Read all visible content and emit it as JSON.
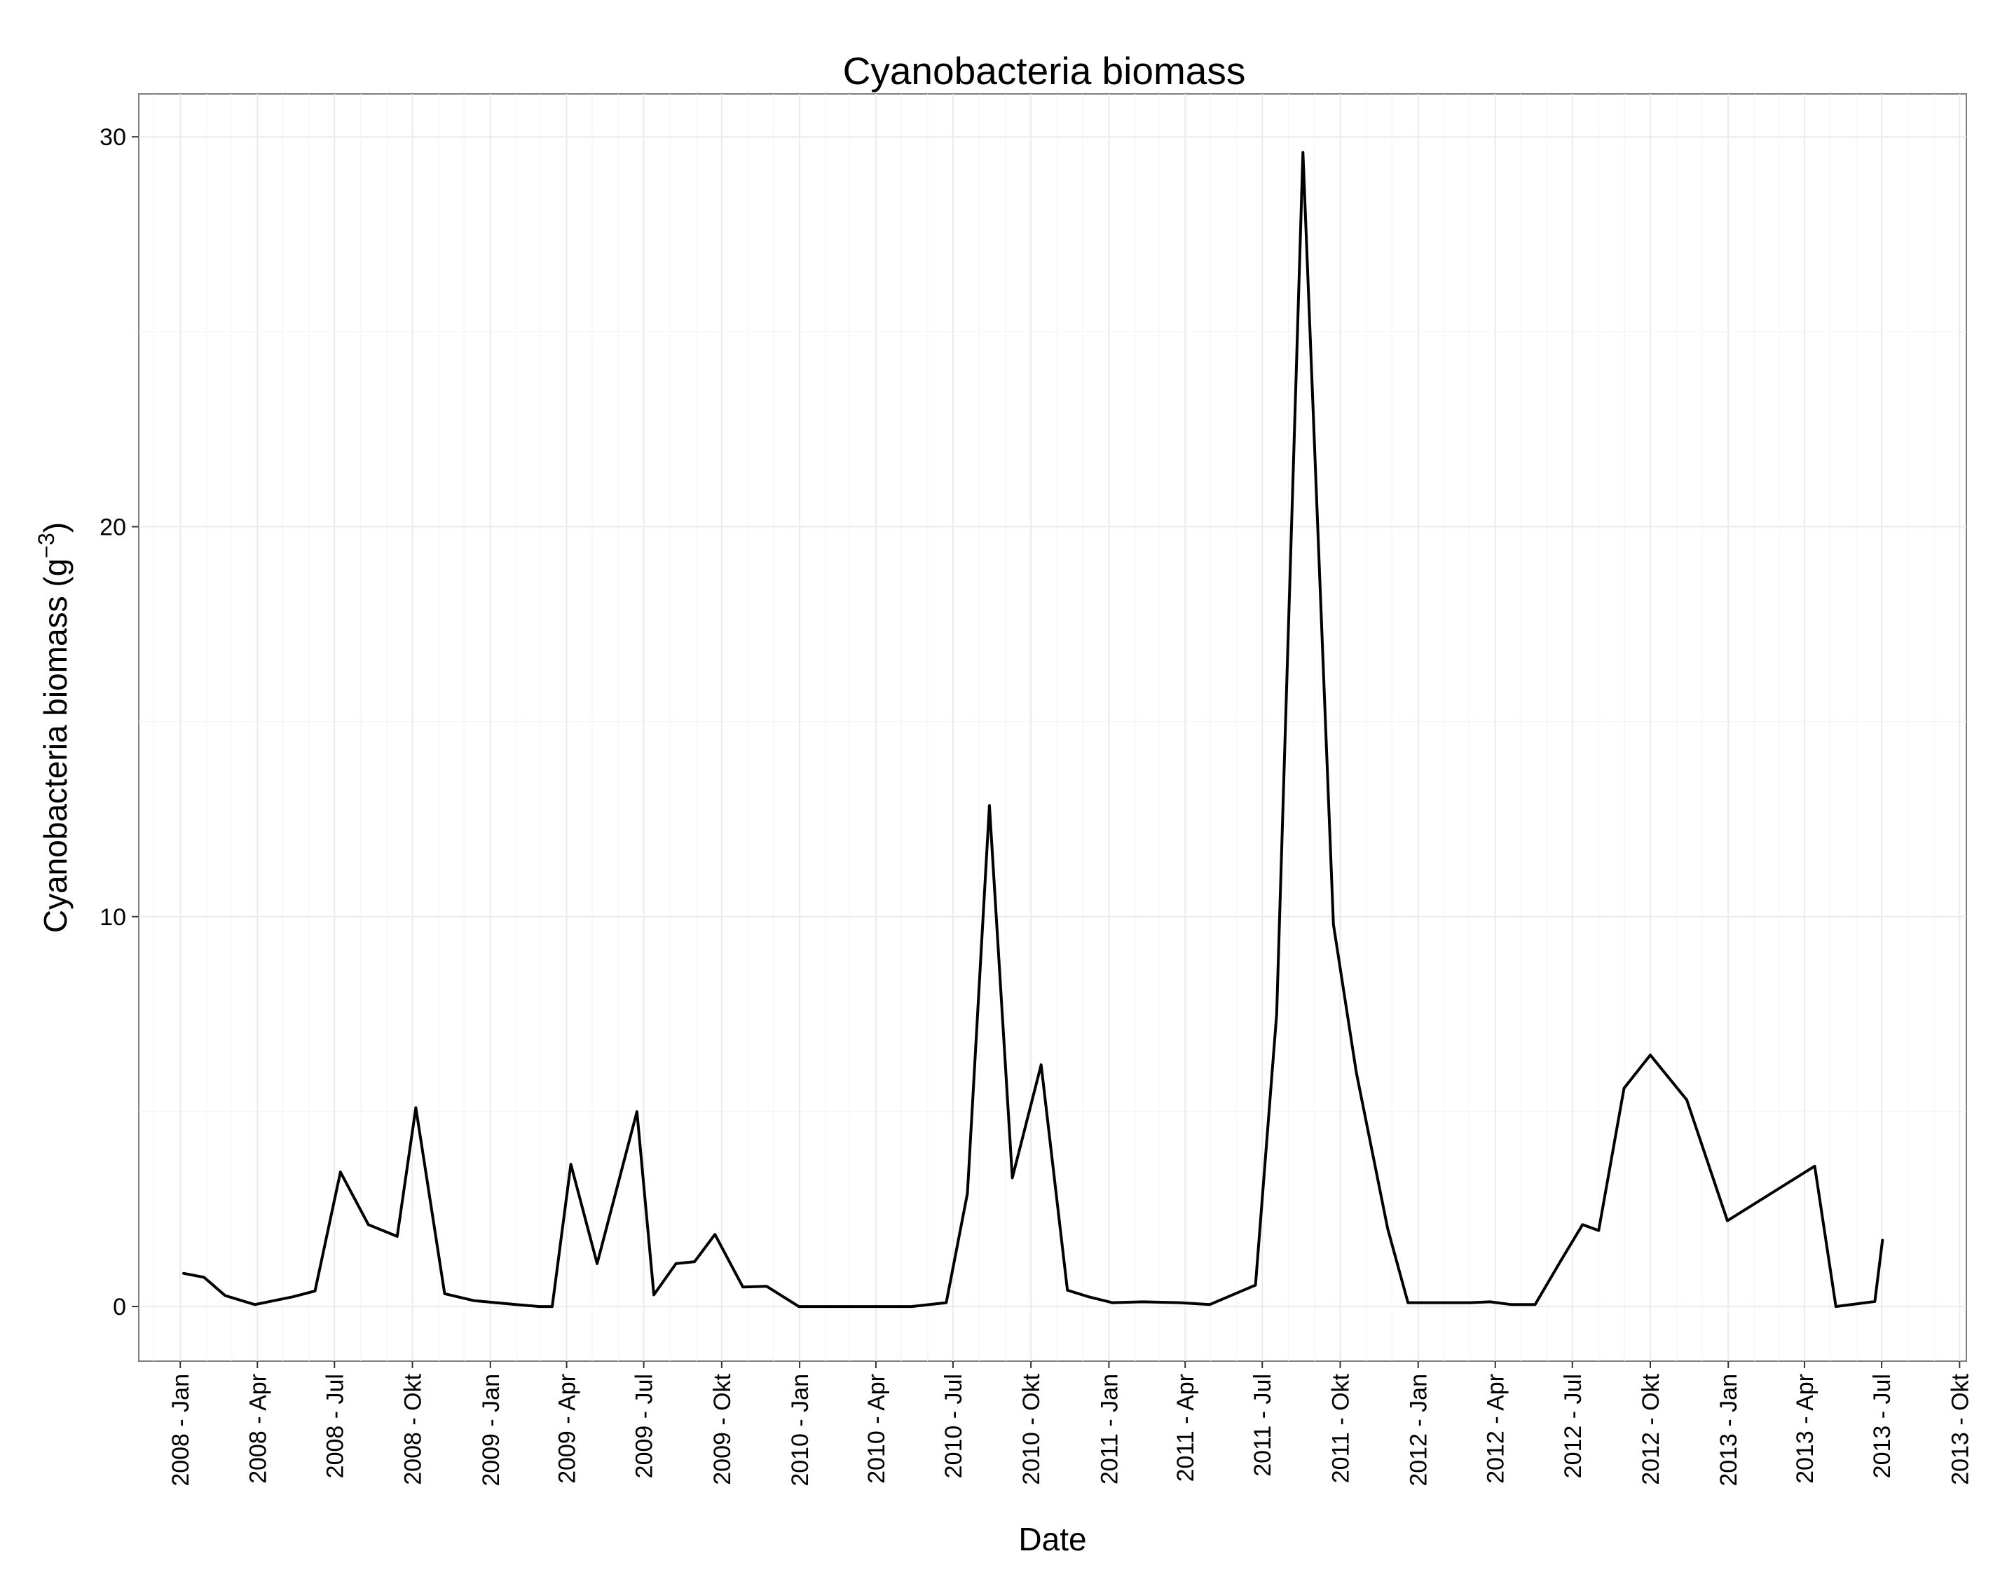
{
  "chart_data": {
    "type": "line",
    "title": "Cyanobacteria biomass",
    "xlabel": "Date",
    "ylabel_main": "Cyanobacteria biomass (g",
    "ylabel_sup": "−3",
    "ylabel_close": ")",
    "ylim": [
      -1.4,
      31.1
    ],
    "xlim": [
      "2007-11-13",
      "2013-10-09"
    ],
    "y_ticks": [
      0,
      10,
      20,
      30
    ],
    "x_ticks": [
      {
        "date": "2008-01-01",
        "label": "2008 - Jan"
      },
      {
        "date": "2008-04-01",
        "label": "2008 - Apr"
      },
      {
        "date": "2008-07-01",
        "label": "2008 - Jul"
      },
      {
        "date": "2008-10-01",
        "label": "2008 - Okt"
      },
      {
        "date": "2009-01-01",
        "label": "2009 - Jan"
      },
      {
        "date": "2009-04-01",
        "label": "2009 - Apr"
      },
      {
        "date": "2009-07-01",
        "label": "2009 - Jul"
      },
      {
        "date": "2009-10-01",
        "label": "2009 - Okt"
      },
      {
        "date": "2010-01-01",
        "label": "2010 - Jan"
      },
      {
        "date": "2010-04-01",
        "label": "2010 - Apr"
      },
      {
        "date": "2010-07-01",
        "label": "2010 - Jul"
      },
      {
        "date": "2010-10-01",
        "label": "2010 - Okt"
      },
      {
        "date": "2011-01-01",
        "label": "2011 - Jan"
      },
      {
        "date": "2011-04-01",
        "label": "2011 - Apr"
      },
      {
        "date": "2011-07-01",
        "label": "2011 - Jul"
      },
      {
        "date": "2011-10-01",
        "label": "2011 - Okt"
      },
      {
        "date": "2012-01-01",
        "label": "2012 - Jan"
      },
      {
        "date": "2012-04-01",
        "label": "2012 - Apr"
      },
      {
        "date": "2012-07-01",
        "label": "2012 - Jul"
      },
      {
        "date": "2012-10-01",
        "label": "2012 - Okt"
      },
      {
        "date": "2013-01-01",
        "label": "2013 - Jan"
      },
      {
        "date": "2013-04-01",
        "label": "2013 - Apr"
      },
      {
        "date": "2013-07-01",
        "label": "2013 - Jul"
      },
      {
        "date": "2013-10-01",
        "label": "2013 - Okt"
      }
    ],
    "grid": true,
    "legend": "none",
    "colors": {
      "line": "#000000",
      "panel_border": "#7f7f7f",
      "grid_major": "#ebebeb",
      "grid_minor": "#f5f5f5"
    },
    "series": [
      {
        "points": [
          {
            "x": "2008-01-05",
            "y": 0.85
          },
          {
            "x": "2008-01-29",
            "y": 0.75
          },
          {
            "x": "2008-02-23",
            "y": 0.28
          },
          {
            "x": "2008-03-29",
            "y": 0.05
          },
          {
            "x": "2008-05-13",
            "y": 0.25
          },
          {
            "x": "2008-06-08",
            "y": 0.4
          },
          {
            "x": "2008-07-08",
            "y": 3.45
          },
          {
            "x": "2008-08-10",
            "y": 2.1
          },
          {
            "x": "2008-09-13",
            "y": 1.8
          },
          {
            "x": "2008-10-05",
            "y": 5.1
          },
          {
            "x": "2008-11-08",
            "y": 0.33
          },
          {
            "x": "2008-12-13",
            "y": 0.15
          },
          {
            "x": "2009-01-31",
            "y": 0.05
          },
          {
            "x": "2009-02-28",
            "y": 0.0
          },
          {
            "x": "2009-03-15",
            "y": 0.0
          },
          {
            "x": "2009-04-06",
            "y": 3.65
          },
          {
            "x": "2009-05-07",
            "y": 1.1
          },
          {
            "x": "2009-06-23",
            "y": 5.0
          },
          {
            "x": "2009-07-13",
            "y": 0.3
          },
          {
            "x": "2009-08-08",
            "y": 1.1
          },
          {
            "x": "2009-08-30",
            "y": 1.15
          },
          {
            "x": "2009-09-23",
            "y": 1.85
          },
          {
            "x": "2009-10-26",
            "y": 0.5
          },
          {
            "x": "2009-11-23",
            "y": 0.52
          },
          {
            "x": "2009-12-31",
            "y": 0.0
          },
          {
            "x": "2010-02-15",
            "y": 0.0
          },
          {
            "x": "2010-04-01",
            "y": 0.0
          },
          {
            "x": "2010-05-13",
            "y": 0.0
          },
          {
            "x": "2010-06-23",
            "y": 0.1
          },
          {
            "x": "2010-07-18",
            "y": 2.9
          },
          {
            "x": "2010-08-13",
            "y": 12.85
          },
          {
            "x": "2010-09-09",
            "y": 3.3
          },
          {
            "x": "2010-10-13",
            "y": 6.2
          },
          {
            "x": "2010-11-13",
            "y": 0.42
          },
          {
            "x": "2010-12-08",
            "y": 0.25
          },
          {
            "x": "2011-01-05",
            "y": 0.1
          },
          {
            "x": "2011-02-10",
            "y": 0.12
          },
          {
            "x": "2011-03-25",
            "y": 0.1
          },
          {
            "x": "2011-04-30",
            "y": 0.05
          },
          {
            "x": "2011-06-23",
            "y": 0.55
          },
          {
            "x": "2011-07-18",
            "y": 7.5
          },
          {
            "x": "2011-08-18",
            "y": 29.6
          },
          {
            "x": "2011-09-23",
            "y": 9.8
          },
          {
            "x": "2011-10-20",
            "y": 6.0
          },
          {
            "x": "2011-11-26",
            "y": 2.0
          },
          {
            "x": "2011-12-20",
            "y": 0.1
          },
          {
            "x": "2012-01-31",
            "y": 0.1
          },
          {
            "x": "2012-03-02",
            "y": 0.1
          },
          {
            "x": "2012-03-26",
            "y": 0.12
          },
          {
            "x": "2012-04-20",
            "y": 0.05
          },
          {
            "x": "2012-05-18",
            "y": 0.05
          },
          {
            "x": "2012-06-18",
            "y": 1.2
          },
          {
            "x": "2012-07-13",
            "y": 2.1
          },
          {
            "x": "2012-08-01",
            "y": 1.95
          },
          {
            "x": "2012-08-31",
            "y": 5.6
          },
          {
            "x": "2012-10-01",
            "y": 6.45
          },
          {
            "x": "2012-11-13",
            "y": 5.3
          },
          {
            "x": "2012-12-31",
            "y": 2.2
          },
          {
            "x": "2013-04-13",
            "y": 3.6
          },
          {
            "x": "2013-05-08",
            "y": 0.0
          },
          {
            "x": "2013-06-23",
            "y": 0.13
          },
          {
            "x": "2013-07-02",
            "y": 1.7
          }
        ]
      }
    ]
  }
}
